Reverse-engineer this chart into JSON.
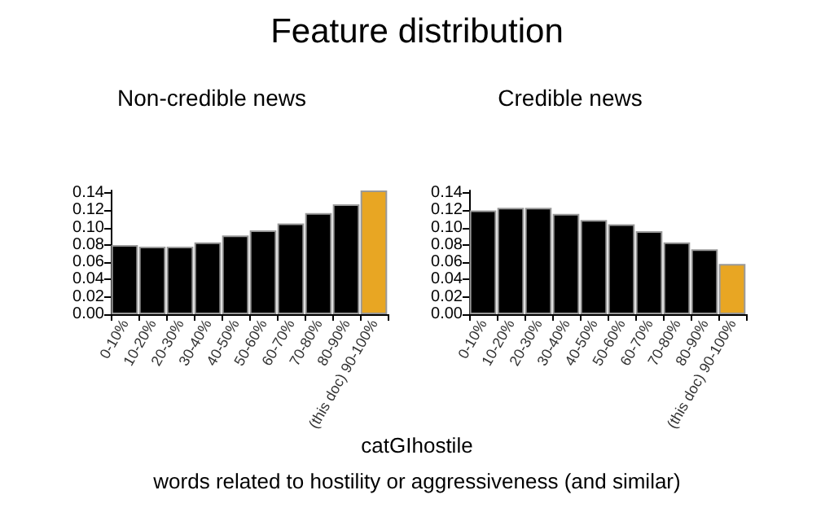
{
  "chart_data": [
    {
      "type": "other",
      "title": "Feature distribution",
      "annotations": [
        "catGIhostile",
        "words related to hostility or aggressiveness (and similar)"
      ]
    },
    {
      "type": "bar",
      "title": "Non-credible news",
      "categories": [
        "0-10%",
        "10-20%",
        "20-30%",
        "30-40%",
        "40-50%",
        "50-60%",
        "60-70%",
        "70-80%",
        "80-90%",
        "(this doc) 90-100%"
      ],
      "values": [
        0.08,
        0.078,
        0.078,
        0.083,
        0.091,
        0.097,
        0.105,
        0.117,
        0.127,
        0.143
      ],
      "colors": [
        "#000000",
        "#000000",
        "#000000",
        "#000000",
        "#000000",
        "#000000",
        "#000000",
        "#000000",
        "#000000",
        "#e8a623"
      ],
      "ylim": [
        0,
        0.143
      ],
      "yticks": [
        {
          "value": 0,
          "label": "0.00"
        },
        {
          "value": 0.02,
          "label": "0.02"
        },
        {
          "value": 0.04,
          "label": "0.04"
        },
        {
          "value": 0.06,
          "label": "0.06"
        },
        {
          "value": 0.08,
          "label": "0.08"
        },
        {
          "value": 0.1,
          "label": "0.10"
        },
        {
          "value": 0.12,
          "label": "0.12"
        },
        {
          "value": 0.14,
          "label": "0.14"
        }
      ],
      "grid": false
    },
    {
      "type": "bar",
      "title": "Credible news",
      "categories": [
        "0-10%",
        "10-20%",
        "20-30%",
        "30-40%",
        "40-50%",
        "50-60%",
        "60-70%",
        "70-80%",
        "80-90%",
        "(this doc) 90-100%"
      ],
      "values": [
        0.12,
        0.123,
        0.123,
        0.116,
        0.109,
        0.104,
        0.096,
        0.083,
        0.075,
        0.058
      ],
      "colors": [
        "#000000",
        "#000000",
        "#000000",
        "#000000",
        "#000000",
        "#000000",
        "#000000",
        "#000000",
        "#000000",
        "#e8a623"
      ],
      "ylim": [
        0,
        0.143
      ],
      "yticks": [
        {
          "value": 0,
          "label": "0.00"
        },
        {
          "value": 0.02,
          "label": "0.02"
        },
        {
          "value": 0.04,
          "label": "0.04"
        },
        {
          "value": 0.06,
          "label": "0.06"
        },
        {
          "value": 0.08,
          "label": "0.08"
        },
        {
          "value": 0.1,
          "label": "0.10"
        },
        {
          "value": 0.12,
          "label": "0.12"
        },
        {
          "value": 0.14,
          "label": "0.14"
        }
      ],
      "grid": false
    }
  ]
}
